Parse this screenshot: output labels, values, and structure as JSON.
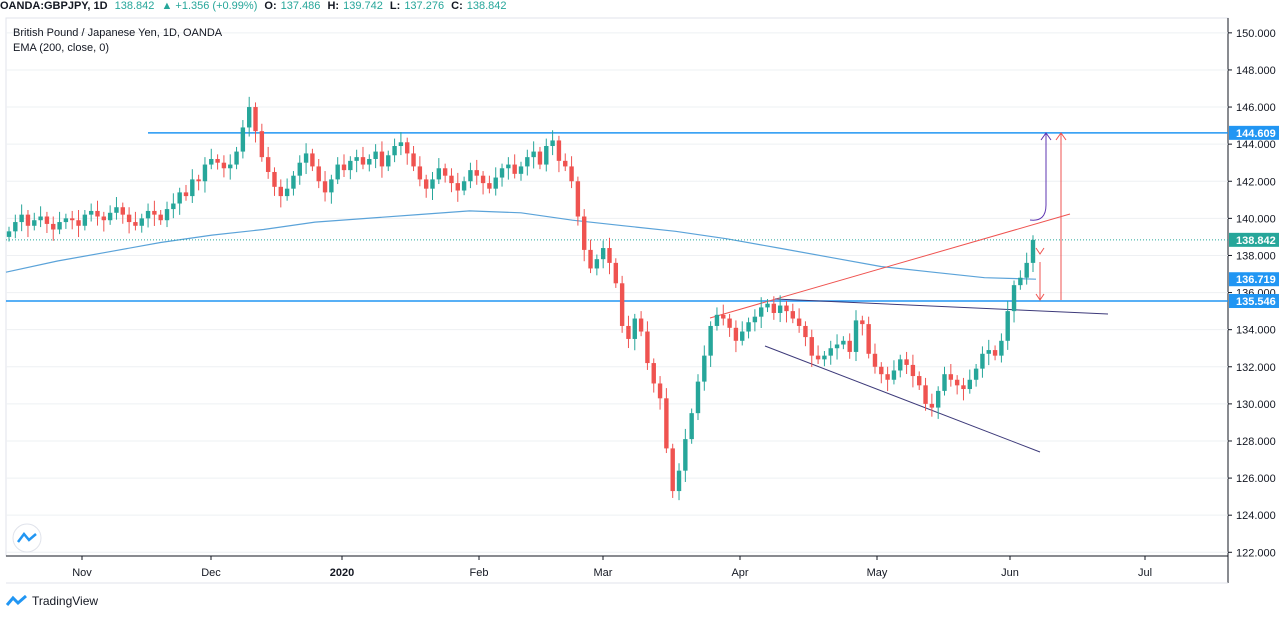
{
  "topbar": {
    "symbol": "OANDA:GBPJPY, 1D",
    "last": "138.842",
    "change": "▲ +1.356 (+0.99%)",
    "open_label": "O:",
    "open": "137.486",
    "high_label": "H:",
    "high": "139.742",
    "low_label": "L:",
    "low": "137.276",
    "close_label": "C:",
    "close": "138.842"
  },
  "legend": {
    "title": "British Pound / Japanese Yen, 1D, OANDA",
    "indicator": "EMA (200, close, 0)"
  },
  "footer": {
    "brand": "TradingView"
  },
  "chart_data": {
    "type": "candlestick",
    "y_axis_ticks": [
      "150.000",
      "148.000",
      "146.000",
      "144.000",
      "142.000",
      "140.000",
      "138.000",
      "136.000",
      "134.000",
      "132.000",
      "130.000",
      "128.000",
      "126.000",
      "124.000",
      "122.000"
    ],
    "ylim": [
      121.8,
      150.8
    ],
    "x_axis_labels": [
      "Nov",
      "Dec",
      "2020",
      "Feb",
      "Mar",
      "Apr",
      "May",
      "Jun",
      "Jul"
    ],
    "price_tags": [
      {
        "label": "144.609",
        "value": 144.609,
        "color": "#2196f3"
      },
      {
        "label": "138.842",
        "value": 138.842,
        "color": "#26a69a"
      },
      {
        "label": "136.719",
        "value": 136.719,
        "color": "#2196f3"
      },
      {
        "label": "135.546",
        "value": 135.546,
        "color": "#2196f3"
      }
    ],
    "horizontal_levels": [
      {
        "value": 144.609,
        "color": "#2196f3"
      },
      {
        "value": 135.546,
        "color": "#2196f3"
      }
    ],
    "last_price_line": {
      "value": 138.842,
      "color": "#26a69a"
    },
    "colors": {
      "up": "#26a69a",
      "down": "#ef5350",
      "ema": "#5ba3d9",
      "grid": "#eef0f3"
    },
    "candles_close": [
      139.3,
      139.8,
      140.2,
      139.6,
      139.9,
      140.1,
      139.7,
      139.4,
      139.8,
      140.0,
      139.9,
      139.6,
      140.2,
      140.4,
      140.1,
      139.9,
      140.3,
      140.6,
      140.2,
      139.8,
      139.6,
      140.0,
      140.4,
      140.2,
      139.9,
      140.5,
      140.8,
      141.4,
      141.2,
      142.1,
      142.0,
      142.9,
      143.2,
      143.0,
      142.7,
      142.9,
      143.6,
      144.9,
      146.0,
      144.7,
      143.3,
      142.5,
      141.7,
      141.2,
      141.6,
      142.3,
      143.0,
      143.5,
      142.8,
      142.0,
      141.4,
      142.1,
      142.9,
      142.6,
      143.1,
      143.3,
      142.9,
      143.2,
      143.6,
      142.8,
      143.4,
      143.9,
      144.1,
      143.5,
      142.8,
      142.1,
      141.6,
      142.1,
      142.7,
      142.3,
      141.9,
      141.5,
      142.0,
      142.6,
      142.3,
      141.9,
      141.6,
      142.2,
      142.7,
      142.9,
      142.4,
      142.8,
      143.3,
      143.6,
      142.9,
      143.9,
      144.2,
      143.1,
      142.8,
      142.0,
      140.1,
      138.3,
      137.3,
      137.8,
      138.4,
      137.6,
      136.5,
      134.2,
      133.5,
      134.6,
      133.9,
      132.2,
      131.1,
      130.3,
      127.6,
      125.3,
      126.4,
      128.1,
      129.5,
      131.2,
      132.6,
      134.2,
      134.8,
      134.6,
      134.1,
      133.4,
      133.9,
      134.4,
      134.7,
      135.2,
      135.4,
      134.9,
      135.3,
      135.0,
      134.6,
      134.2,
      133.6,
      132.6,
      132.4,
      132.6,
      133.0,
      133.2,
      133.4,
      132.8,
      134.5,
      134.3,
      132.7,
      132.0,
      131.6,
      131.3,
      131.8,
      132.4,
      132.1,
      131.5,
      131.0,
      130.0,
      129.8,
      130.7,
      131.6,
      131.3,
      131.0,
      130.8,
      131.3,
      131.9,
      132.7,
      132.9,
      132.6,
      133.4,
      135.0,
      136.4,
      136.8,
      137.6,
      138.842
    ],
    "ema_200": [
      137.1,
      137.7,
      138.2,
      138.7,
      139.1,
      139.4,
      139.8,
      140.0,
      140.2,
      140.4,
      140.3,
      139.9,
      139.6,
      139.3,
      138.9,
      138.4,
      137.9,
      137.4,
      137.1,
      136.8,
      136.719
    ]
  }
}
